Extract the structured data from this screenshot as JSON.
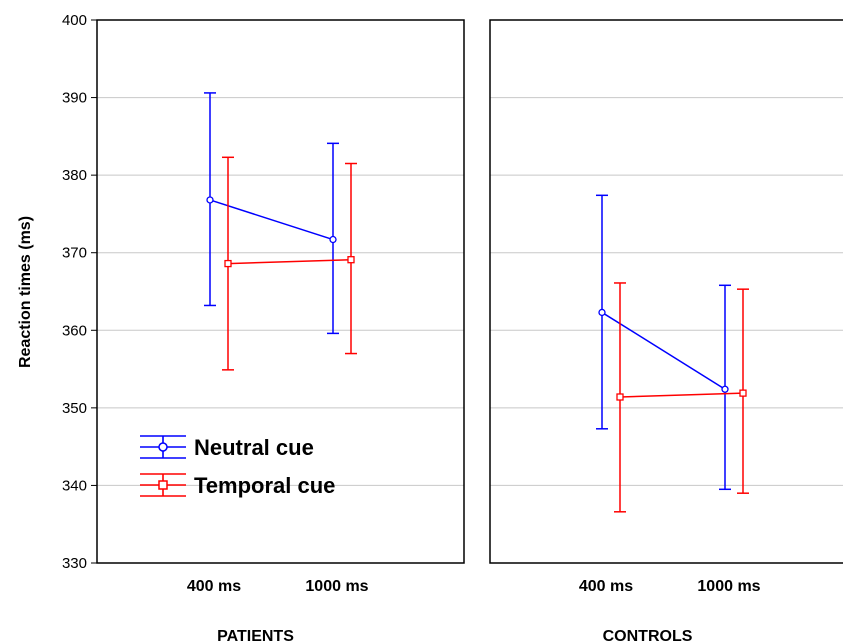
{
  "chart_data": {
    "type": "line",
    "ylabel": "Reaction times (ms)",
    "ylim": [
      330,
      400
    ],
    "yticks": [
      330,
      340,
      350,
      360,
      370,
      380,
      390,
      400
    ],
    "grid": "horizontal",
    "legend_position": "bottom-left of first panel",
    "panels": [
      {
        "label": "PATIENTS",
        "categories": [
          "400 ms",
          "1000 ms"
        ],
        "series": [
          {
            "name": "Neutral cue",
            "color": "#0000ff",
            "marker": "circle",
            "values": [
              376.8,
              371.7
            ],
            "err_low": [
              363.2,
              359.6
            ],
            "err_high": [
              390.6,
              384.1
            ]
          },
          {
            "name": "Temporal cue",
            "color": "#ff0000",
            "marker": "square",
            "values": [
              368.6,
              369.1
            ],
            "err_low": [
              354.9,
              357.0
            ],
            "err_high": [
              382.3,
              381.5
            ]
          }
        ]
      },
      {
        "label": "CONTROLS",
        "categories": [
          "400 ms",
          "1000 ms"
        ],
        "series": [
          {
            "name": "Neutral cue",
            "color": "#0000ff",
            "marker": "circle",
            "values": [
              362.3,
              352.4
            ],
            "err_low": [
              347.3,
              339.5
            ],
            "err_high": [
              377.4,
              365.8
            ]
          },
          {
            "name": "Temporal cue",
            "color": "#ff0000",
            "marker": "square",
            "values": [
              351.4,
              351.9
            ],
            "err_low": [
              336.6,
              339.0
            ],
            "err_high": [
              366.1,
              365.3
            ]
          }
        ]
      }
    ]
  }
}
